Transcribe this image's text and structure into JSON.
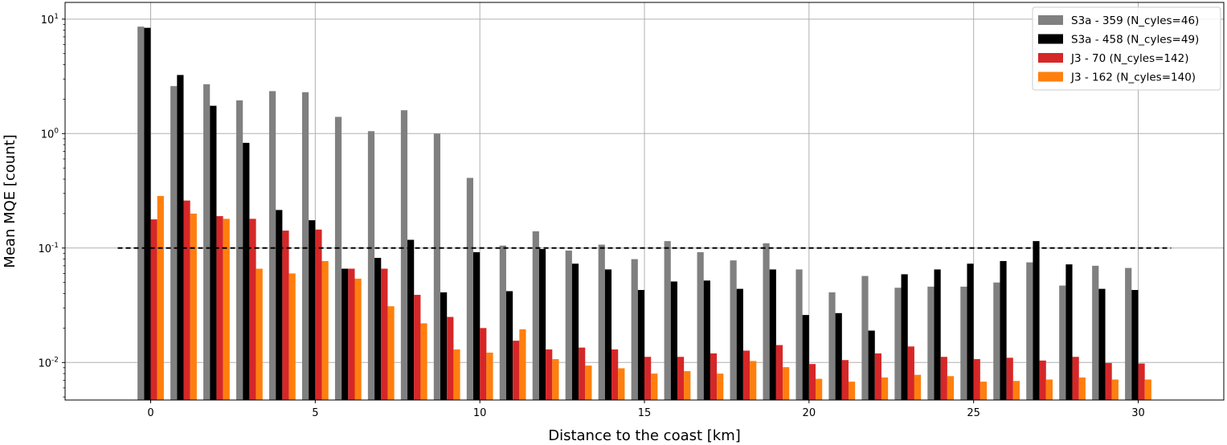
{
  "chart_data": {
    "type": "bar",
    "xlabel": "Distance to the coast [km]",
    "ylabel": "Mean MQE [count]",
    "yscale": "log",
    "ylim": [
      0.0047,
      14
    ],
    "xlim": [
      -2.6,
      32.6
    ],
    "xticks": [
      0,
      5,
      10,
      15,
      20,
      25,
      30
    ],
    "yticks": [
      {
        "value": 0.01,
        "base": "10",
        "exp": "-2"
      },
      {
        "value": 0.1,
        "base": "10",
        "exp": "-1"
      },
      {
        "value": 1,
        "base": "10",
        "exp": "0"
      },
      {
        "value": 10,
        "base": "10",
        "exp": "1"
      }
    ],
    "grid": true,
    "legend_position": "top-right",
    "reference_line": {
      "y": 0.1,
      "x_from": -1,
      "x_to": 31,
      "style": "dashed",
      "color": "#000000"
    },
    "x": [
      0,
      1,
      2,
      3,
      4,
      5,
      6,
      7,
      8,
      9,
      10,
      11,
      12,
      13,
      14,
      15,
      16,
      17,
      18,
      19,
      20,
      21,
      22,
      23,
      24,
      25,
      26,
      27,
      28,
      29,
      30
    ],
    "series": [
      {
        "name": "S3a - 359 (N_cyles=46)",
        "color": "#808080",
        "values": [
          8.6,
          2.6,
          2.7,
          1.95,
          2.35,
          2.3,
          1.4,
          1.05,
          1.6,
          1.0,
          0.41,
          0.105,
          0.14,
          0.095,
          0.107,
          0.08,
          0.115,
          0.092,
          0.078,
          0.11,
          0.065,
          0.041,
          0.057,
          0.045,
          0.046,
          0.046,
          0.05,
          0.075,
          0.047,
          0.07,
          0.067
        ]
      },
      {
        "name": "S3a - 458 (N_cyles=49)",
        "color": "#000000",
        "values": [
          8.4,
          3.25,
          1.75,
          0.83,
          0.215,
          0.175,
          0.066,
          0.082,
          0.118,
          0.041,
          0.092,
          0.042,
          0.098,
          0.073,
          0.065,
          0.043,
          0.051,
          0.052,
          0.044,
          0.065,
          0.026,
          0.027,
          0.019,
          0.059,
          0.065,
          0.073,
          0.077,
          0.115,
          0.072,
          0.044,
          0.043
        ]
      },
      {
        "name": "J3 - 70 (N_cyles=142)",
        "color": "#d62728",
        "values": [
          0.178,
          0.26,
          0.19,
          0.18,
          0.142,
          0.145,
          0.066,
          0.066,
          0.039,
          0.025,
          0.02,
          0.0155,
          0.013,
          0.0135,
          0.013,
          0.0112,
          0.0112,
          0.012,
          0.0127,
          0.0142,
          0.0097,
          0.0105,
          0.012,
          0.0138,
          0.0112,
          0.0107,
          0.011,
          0.0104,
          0.0112,
          0.0099,
          0.0098
        ]
      },
      {
        "name": "J3 - 162 (N_cyles=140)",
        "color": "#ff7f0e",
        "values": [
          0.285,
          0.2,
          0.18,
          0.066,
          0.06,
          0.077,
          0.054,
          0.031,
          0.022,
          0.013,
          0.0122,
          0.0195,
          0.0107,
          0.0094,
          0.0089,
          0.008,
          0.0084,
          0.008,
          0.0103,
          0.0091,
          0.0072,
          0.0068,
          0.0074,
          0.0078,
          0.0076,
          0.0068,
          0.0069,
          0.0071,
          0.0074,
          0.0071,
          0.0071
        ]
      }
    ]
  }
}
